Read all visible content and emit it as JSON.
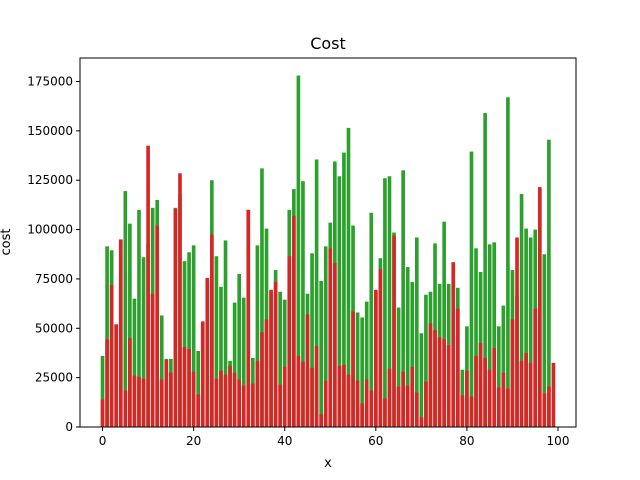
{
  "colors": {
    "series_green": "#2ca02c",
    "series_red": "#d62728",
    "axis": "#000000",
    "background": "#ffffff"
  },
  "chart_data": {
    "type": "bar",
    "title": "Cost",
    "xlabel": "x",
    "ylabel": "cost",
    "xlim": [
      -4.95,
      103.95
    ],
    "ylim": [
      0,
      186900
    ],
    "xticks": [
      0,
      20,
      40,
      60,
      80,
      100
    ],
    "yticks": [
      0,
      25000,
      50000,
      75000,
      100000,
      125000,
      150000,
      175000
    ],
    "grid": false,
    "legend": "none",
    "bar_width": 0.8,
    "x": [
      0,
      1,
      2,
      3,
      4,
      5,
      6,
      7,
      8,
      9,
      10,
      11,
      12,
      13,
      14,
      15,
      16,
      17,
      18,
      19,
      20,
      21,
      22,
      23,
      24,
      25,
      26,
      27,
      28,
      29,
      30,
      31,
      32,
      33,
      34,
      35,
      36,
      37,
      38,
      39,
      40,
      41,
      42,
      43,
      44,
      45,
      46,
      47,
      48,
      49,
      50,
      51,
      52,
      53,
      54,
      55,
      56,
      57,
      58,
      59,
      60,
      61,
      62,
      63,
      64,
      65,
      66,
      67,
      68,
      69,
      70,
      71,
      72,
      73,
      74,
      75,
      76,
      77,
      78,
      79,
      80,
      81,
      82,
      83,
      84,
      85,
      86,
      87,
      88,
      89,
      90,
      91,
      92,
      93,
      94,
      95,
      96,
      97,
      98,
      99
    ],
    "series": [
      {
        "color": "#2ca02c",
        "values": [
          36000,
          91500,
          89500,
          52000,
          95000,
          119500,
          103000,
          65000,
          110000,
          86000,
          92500,
          111000,
          115000,
          56500,
          34500,
          34500,
          111000,
          118000,
          84000,
          88500,
          92000,
          38500,
          53000,
          74000,
          125000,
          86500,
          71000,
          94500,
          33500,
          63000,
          77500,
          65500,
          110000,
          35000,
          92000,
          131000,
          100500,
          68500,
          79500,
          68500,
          64500,
          110000,
          120500,
          178000,
          124500,
          67500,
          88000,
          135500,
          74000,
          91500,
          103500,
          134500,
          127000,
          139000,
          151500,
          102000,
          58000,
          55500,
          63500,
          108500,
          68500,
          85500,
          126000,
          127000,
          98500,
          60500,
          130000,
          81000,
          73500,
          96000,
          47500,
          67000,
          68500,
          93000,
          72500,
          104000,
          72500,
          83000,
          70500,
          29000,
          51000,
          139500,
          90500,
          78500,
          159000,
          92500,
          93500,
          51000,
          61500,
          167000,
          79500,
          66500,
          118000,
          100500,
          96000,
          100000,
          120500,
          87500,
          145500,
          0
        ],
        "fill": "behind"
      },
      {
        "color": "#d62728",
        "values": [
          14000,
          44500,
          72000,
          52000,
          95000,
          18500,
          45000,
          26000,
          25500,
          24500,
          142500,
          67500,
          102000,
          24000,
          34000,
          27500,
          110500,
          128500,
          40500,
          39500,
          28000,
          16500,
          53500,
          75500,
          97500,
          24500,
          28500,
          26500,
          31000,
          27500,
          24000,
          21000,
          110000,
          22000,
          33500,
          48000,
          54500,
          69500,
          73500,
          21500,
          30500,
          86500,
          107000,
          36000,
          33000,
          57000,
          30000,
          41000,
          6500,
          23500,
          90500,
          83000,
          31000,
          31500,
          26500,
          58500,
          23500,
          12000,
          24000,
          18500,
          69500,
          80000,
          14500,
          29500,
          97000,
          20500,
          28000,
          21000,
          30500,
          17500,
          5000,
          23000,
          52500,
          49000,
          45500,
          44500,
          41500,
          83500,
          60000,
          16000,
          28500,
          15500,
          36000,
          42500,
          35000,
          29000,
          40000,
          20000,
          27500,
          19500,
          54500,
          96000,
          33500,
          37500,
          32500,
          60000,
          121500,
          17000,
          20500,
          32500
        ],
        "fill": "front"
      }
    ]
  }
}
